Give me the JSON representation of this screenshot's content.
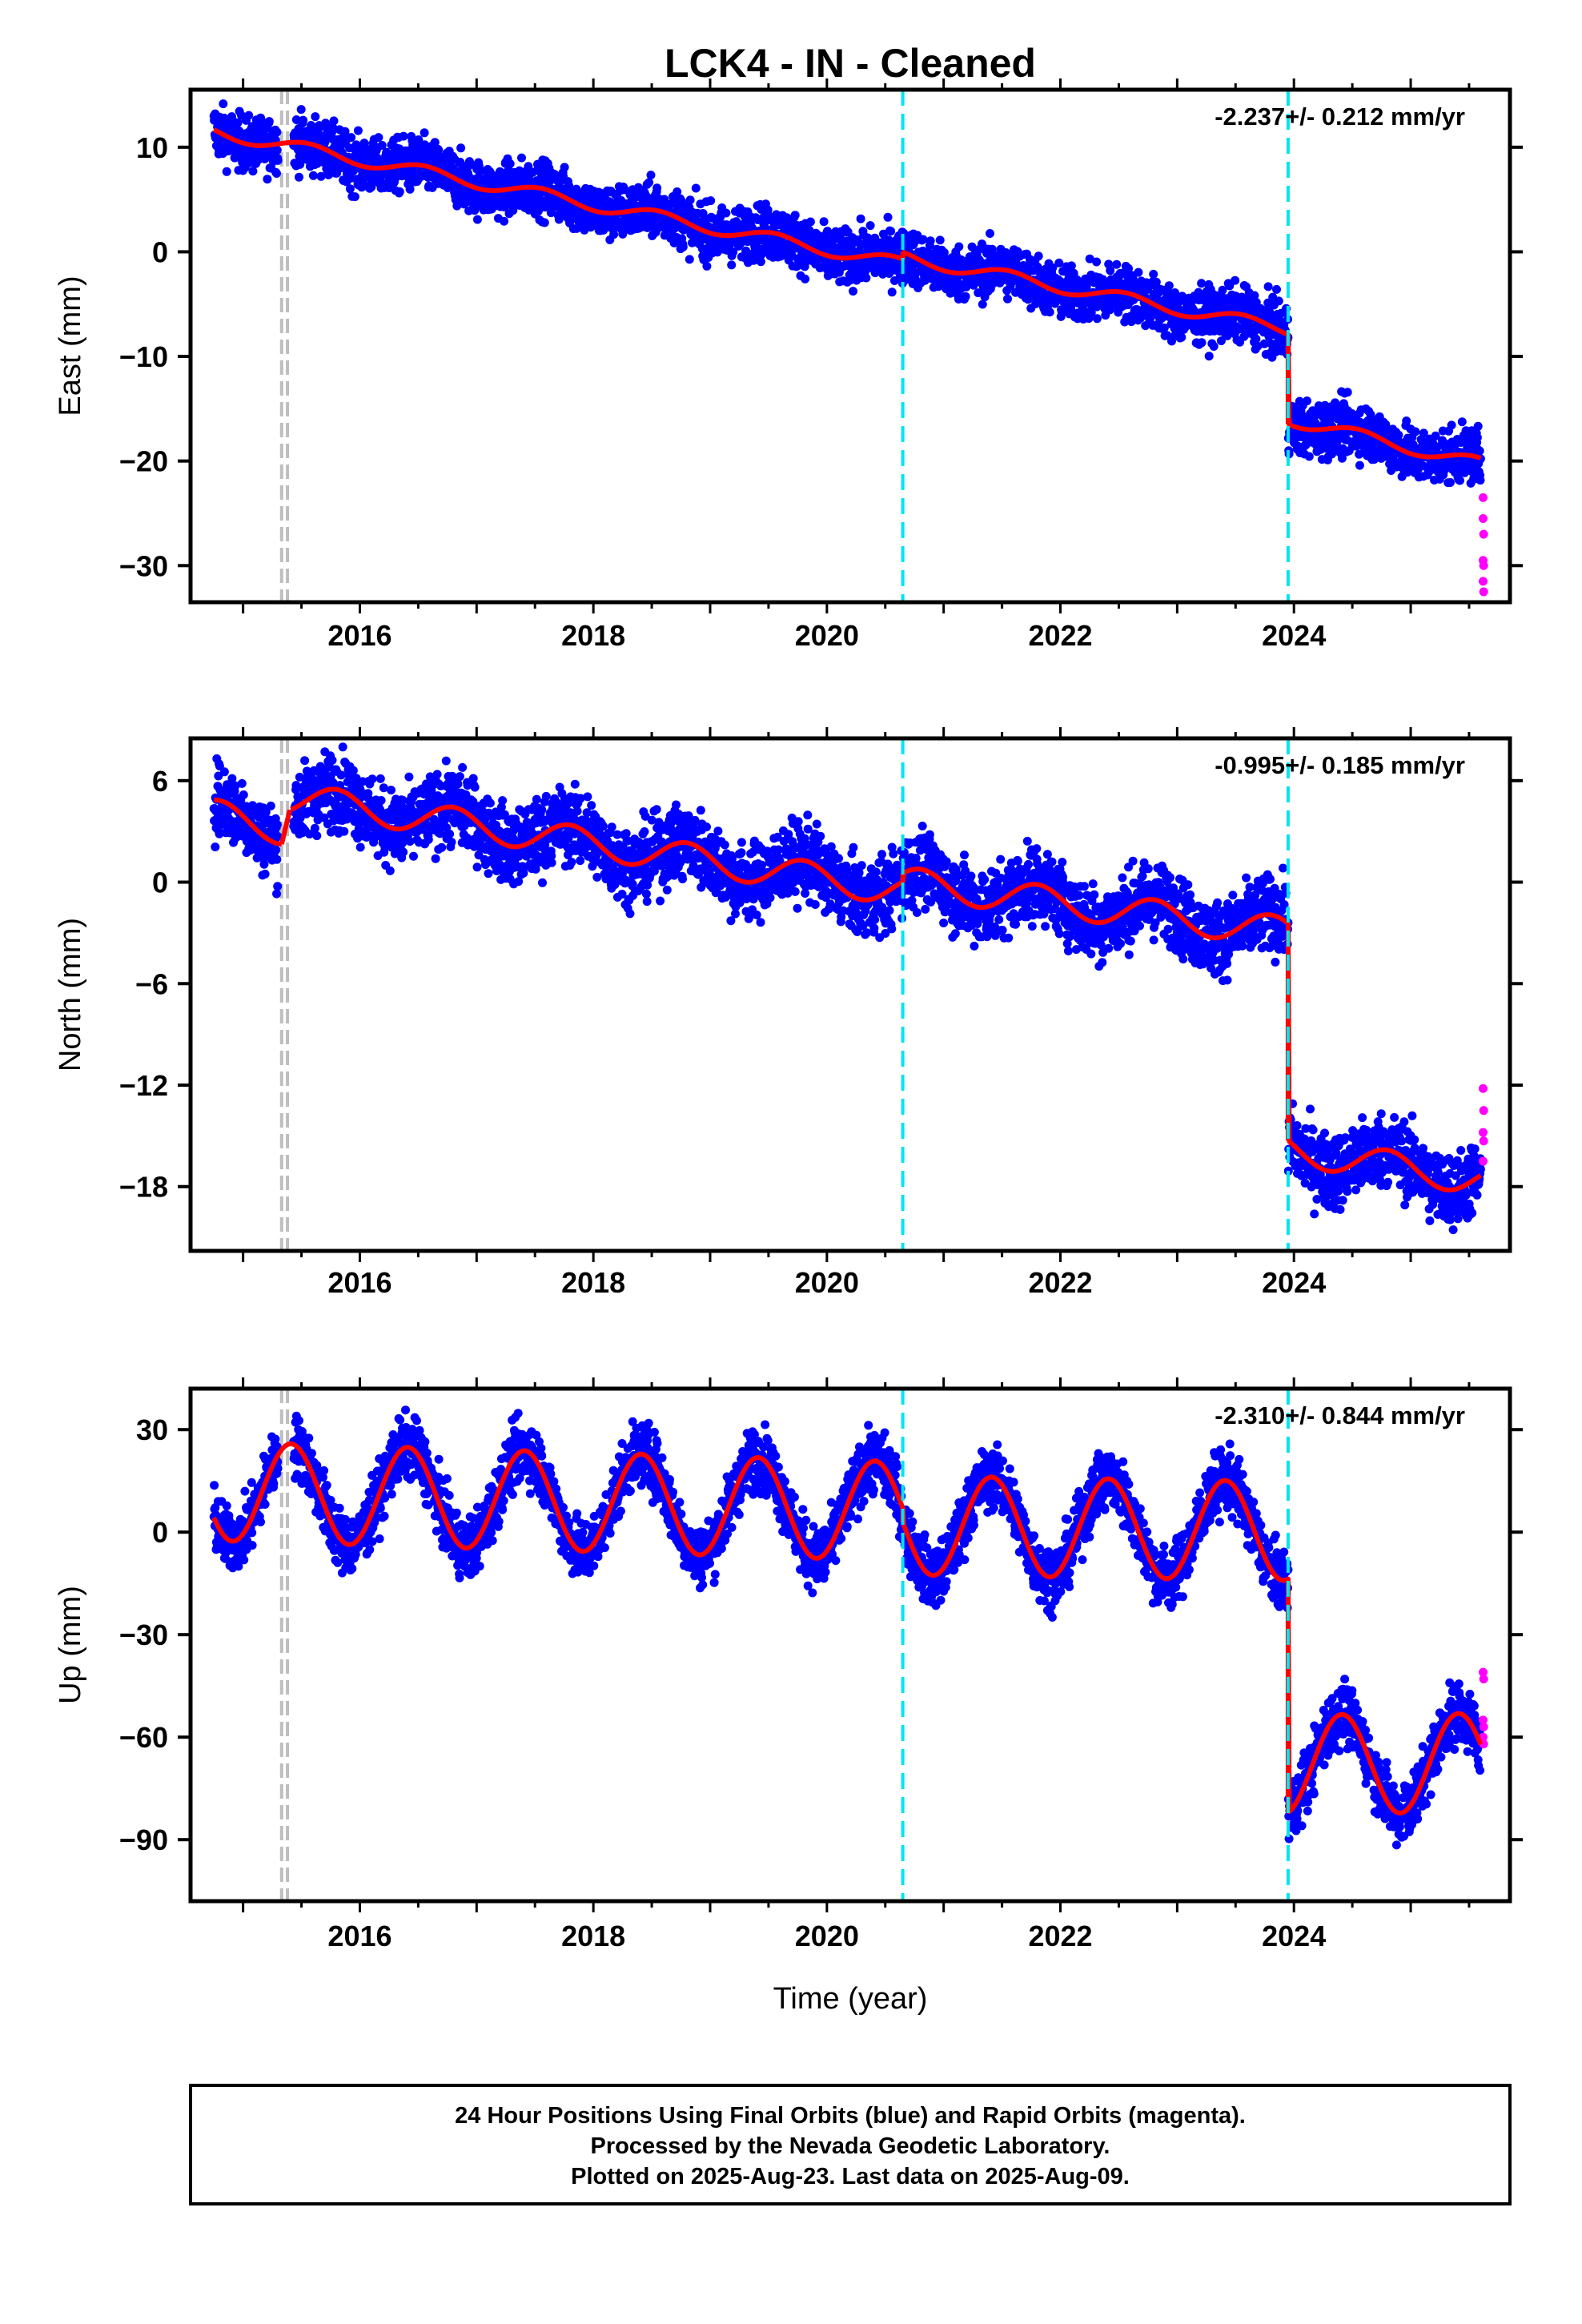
{
  "title": "LCK4  - IN - Cleaned",
  "xlabel": "Time (year)",
  "footer": {
    "line1": "24 Hour Positions Using Final Orbits (blue) and Rapid Orbits (magenta).",
    "line2": "Processed by the Nevada Geodetic Laboratory.",
    "line3": "Plotted on 2025-Aug-23. Last data on 2025-Aug-09."
  },
  "colors": {
    "final": "#0000ff",
    "rapid": "#ff00ff",
    "model": "#ff0000",
    "equipment_change": "#00e5ee",
    "gap_marker": "#bebebe"
  },
  "chart_data": [
    {
      "type": "scatter",
      "ylabel": "East (mm)",
      "rate": "-2.237+/- 0.212 mm/yr",
      "xlim": [
        2014.55,
        2025.85
      ],
      "ylim": [
        -33.5,
        15.5
      ],
      "yticks": [
        10,
        0,
        -10,
        -20,
        -30
      ],
      "xticks": [
        2016,
        2018,
        2020,
        2022,
        2024
      ],
      "grey_lines": [
        2015.33,
        2015.38
      ],
      "cyan_lines": [
        2020.65,
        2023.95
      ],
      "data_start": 2014.75,
      "data_end": 2025.6,
      "gap": [
        2015.3,
        2015.43
      ],
      "segments": [
        {
          "from": 2014.75,
          "to": 2020.65,
          "y0": 11.5,
          "slope": -2.15
        },
        {
          "from": 2020.65,
          "to": 2023.95,
          "y0": -0.5,
          "slope": -2.1
        },
        {
          "from": 2023.95,
          "to": 2025.6,
          "y0": -16.0,
          "slope": -2.6
        }
      ],
      "seasonal_amp": 0.6,
      "seasonal_phase": 0.3,
      "scatter": 1.3,
      "rapid": [
        -23.5,
        -27,
        -29.5,
        -30,
        -31.5,
        -32.5,
        -25.5
      ]
    },
    {
      "type": "scatter",
      "ylabel": "North (mm)",
      "rate": "-0.995+/- 0.185 mm/yr",
      "xlim": [
        2014.55,
        2025.85
      ],
      "ylim": [
        -21.8,
        8.5
      ],
      "yticks": [
        6,
        0,
        -6,
        -12,
        -18
      ],
      "xticks": [
        2016,
        2018,
        2020,
        2022,
        2024
      ],
      "grey_lines": [
        2015.33,
        2015.38
      ],
      "cyan_lines": [
        2020.65,
        2023.95
      ],
      "data_start": 2014.75,
      "data_end": 2025.6,
      "gap": [
        2015.3,
        2015.43
      ],
      "segments": [
        {
          "from": 2014.75,
          "to": 2015.33,
          "y0": 4.0,
          "slope": -1.5
        },
        {
          "from": 2015.4,
          "to": 2020.65,
          "y0": 5.0,
          "slope": -1.05
        },
        {
          "from": 2020.65,
          "to": 2023.95,
          "y0": 0.0,
          "slope": -0.9
        },
        {
          "from": 2023.95,
          "to": 2025.6,
          "y0": -15.8,
          "slope": -1.1
        }
      ],
      "seasonal_amp": 0.9,
      "seasonal_phase": 0.55,
      "scatter": 1.1,
      "rapid": [
        -12.2,
        -13.5,
        -14.8,
        -15.3,
        -16.5
      ]
    },
    {
      "type": "scatter",
      "ylabel": "Up (mm)",
      "rate": "-2.310+/- 0.844 mm/yr",
      "xlim": [
        2014.55,
        2025.85
      ],
      "ylim": [
        -108,
        42
      ],
      "yticks": [
        30,
        0,
        -30,
        -60,
        -90
      ],
      "xticks": [
        2016,
        2018,
        2020,
        2022,
        2024
      ],
      "grey_lines": [
        2015.33,
        2015.38
      ],
      "cyan_lines": [
        2020.65,
        2023.95
      ],
      "data_start": 2014.75,
      "data_end": 2025.6,
      "gap": [
        2015.3,
        2015.43
      ],
      "segments": [
        {
          "from": 2014.75,
          "to": 2020.65,
          "y0": 12.0,
          "slope": -1.0
        },
        {
          "from": 2020.65,
          "to": 2023.95,
          "y0": 2.0,
          "slope": -0.5
        },
        {
          "from": 2023.95,
          "to": 2025.6,
          "y0": -68.0,
          "slope": 0.3
        }
      ],
      "seasonal_amp": 14.5,
      "seasonal_phase": 0.16,
      "scatter": 4.5,
      "rapid": [
        -41,
        -43,
        -55,
        -57,
        -60,
        -62
      ]
    }
  ]
}
